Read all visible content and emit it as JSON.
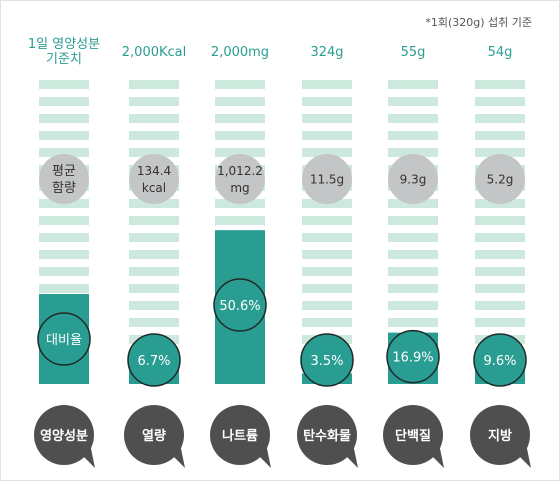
{
  "note": "*1회(320g) 섭취 기준",
  "header_label": [
    "1일 영양성분",
    "기준치"
  ],
  "average_label": [
    "평균",
    "함량"
  ],
  "ratio_label": "대비율",
  "category_label": "영양성분",
  "colors": {
    "teal": "#2a9d93",
    "teal_text": "#2a9d93",
    "stripe": "#cde8dd",
    "grey_circle": "#c3c5c6",
    "dark_circle": "#4f4f4f",
    "border": "#e2e2e2"
  },
  "chart_data": {
    "type": "bar",
    "categories": [
      "열량",
      "나트륨",
      "탄수화물",
      "단백질",
      "지방"
    ],
    "daily_values": [
      "2,000Kcal",
      "2,000mg",
      "324g",
      "55g",
      "54g"
    ],
    "amounts": [
      [
        "134.4",
        "kcal"
      ],
      [
        "1,012.2",
        "mg"
      ],
      [
        "11.5g"
      ],
      [
        "9.3g"
      ],
      [
        "5.2g"
      ]
    ],
    "percent_labels": [
      "6.7%",
      "50.6%",
      "3.5%",
      "16.9%",
      "9.6%"
    ],
    "values": [
      6.7,
      50.6,
      3.5,
      16.9,
      9.6
    ],
    "ylim": [
      0,
      100
    ]
  }
}
